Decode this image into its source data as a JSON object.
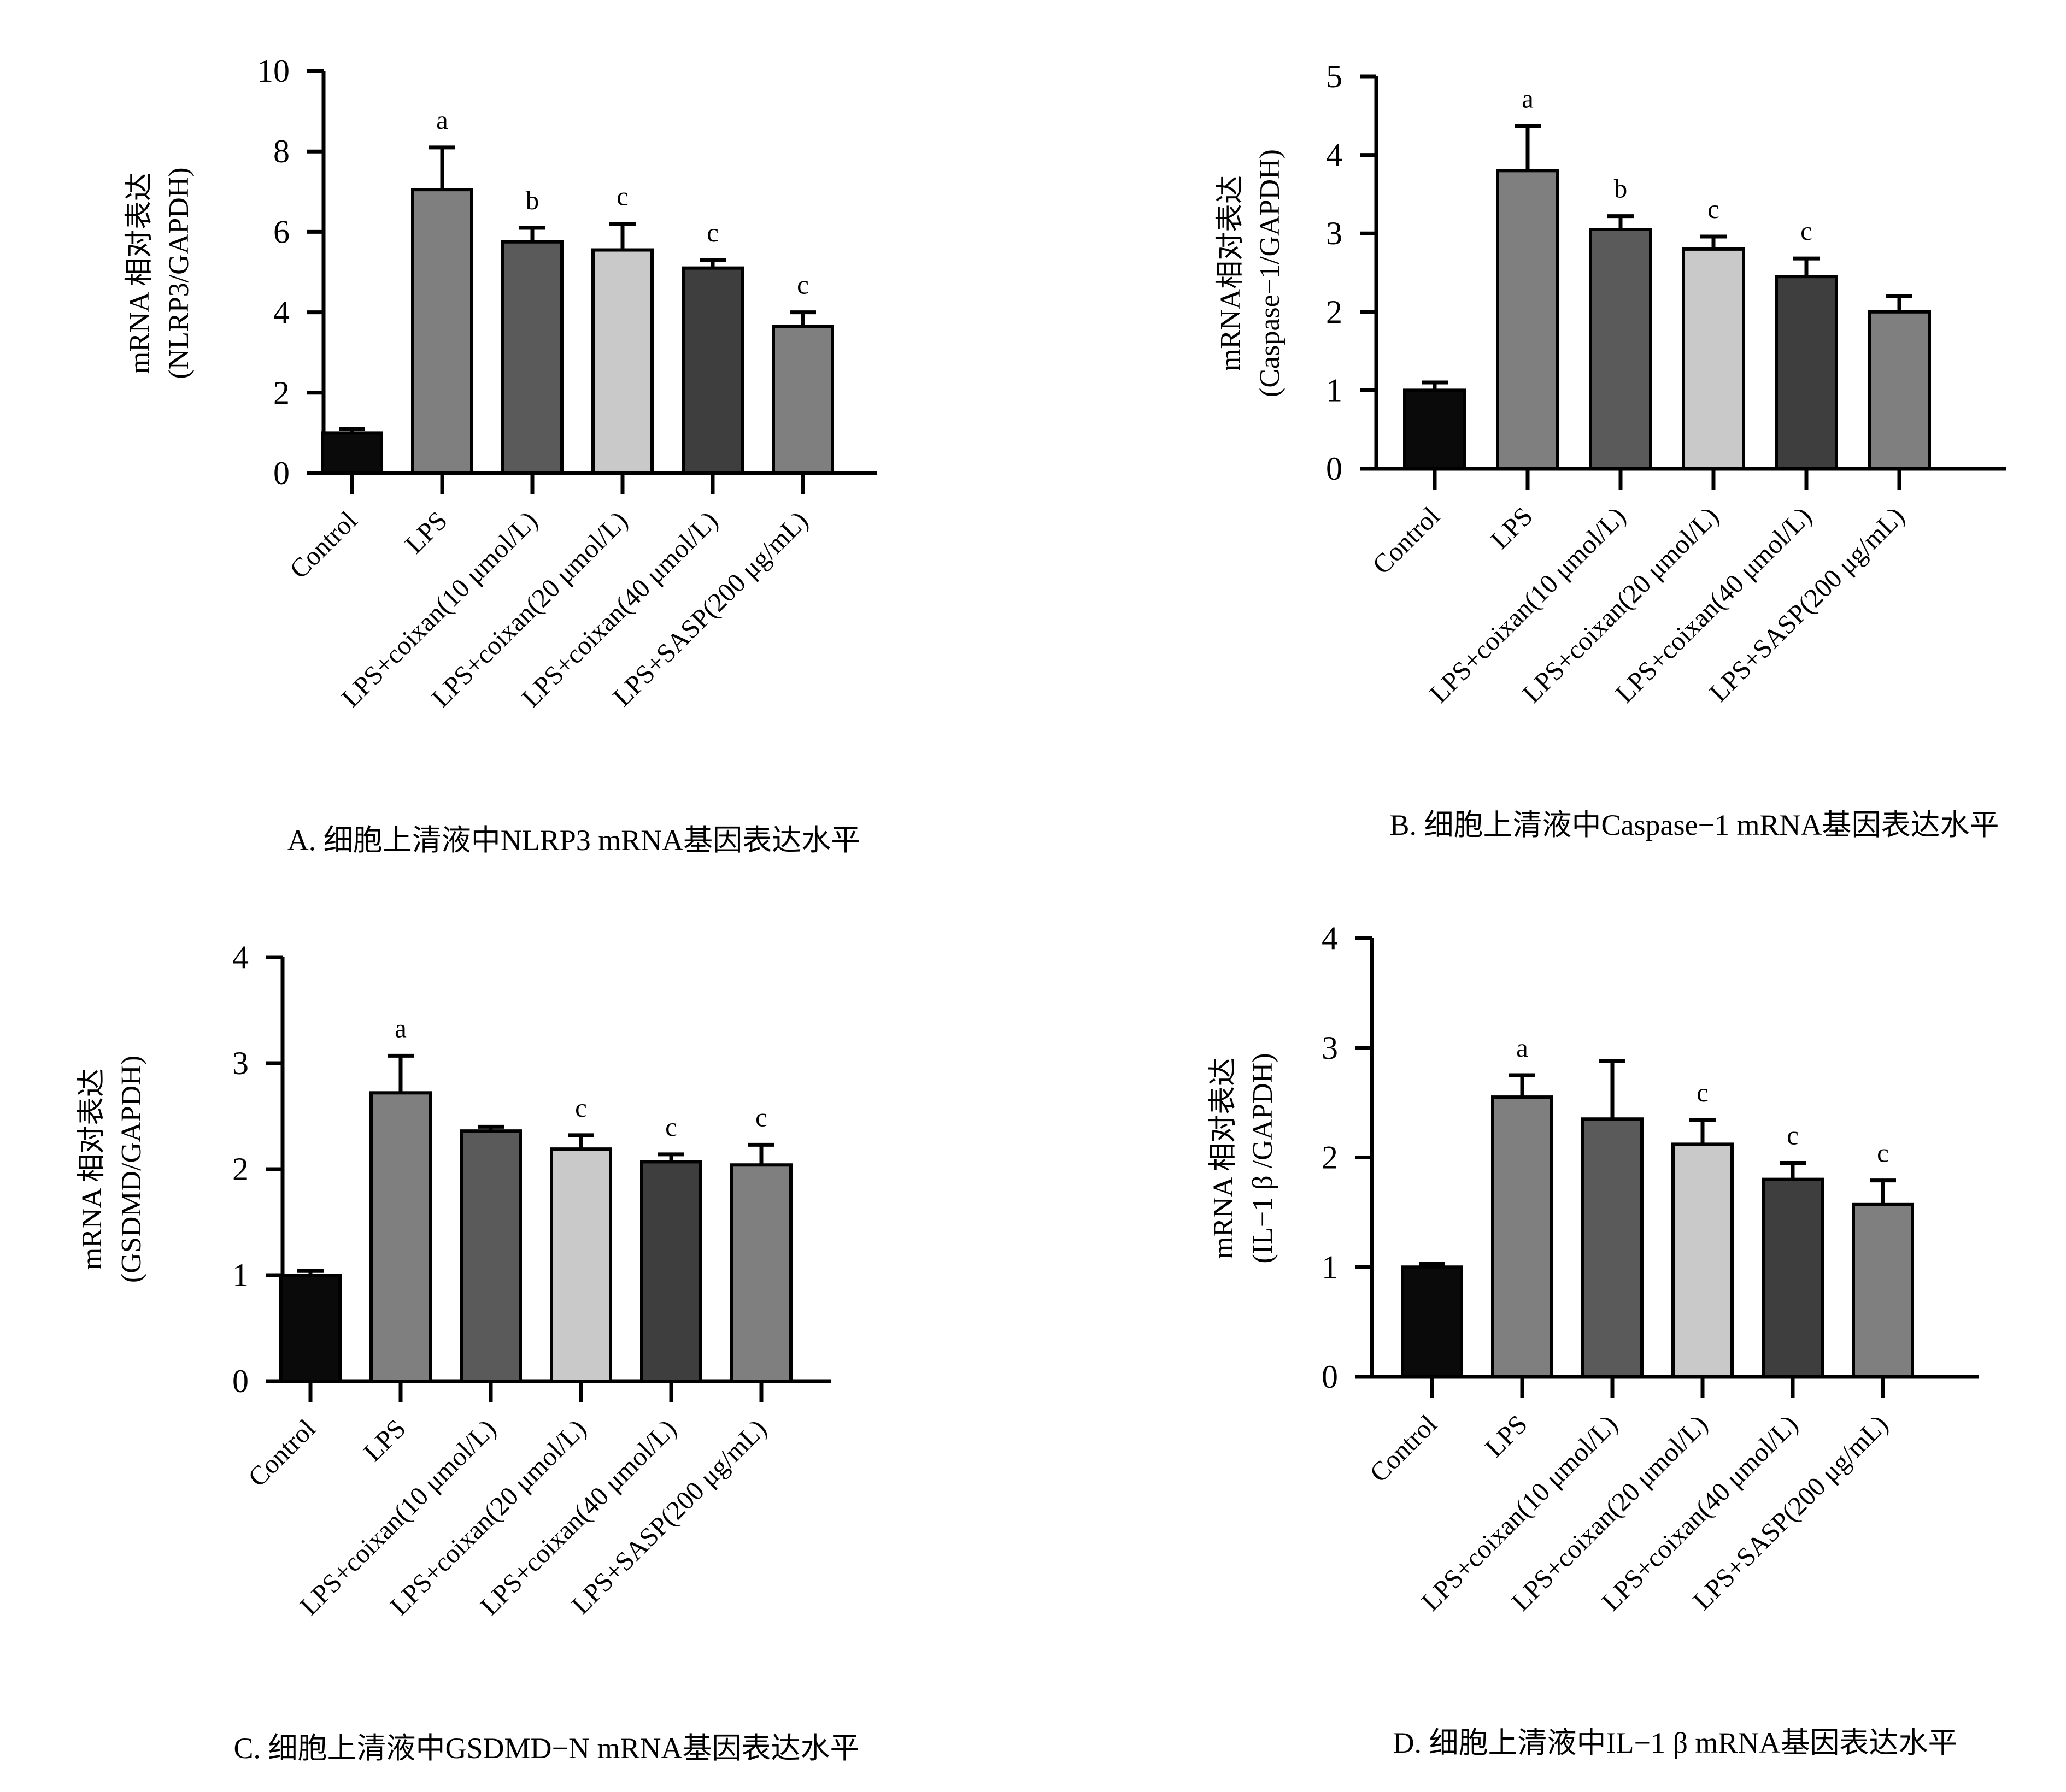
{
  "chart_data": [
    {
      "type": "bar",
      "panel": "A",
      "caption": "A. 细胞上清液中NLRP3 mRNA基因表达水平",
      "ylabel_lines": [
        "mRNA 相对表达",
        "(NLRP3/GAPDH)"
      ],
      "categories": [
        "Control",
        "LPS",
        "LPS+coixan(10 μmol/L)",
        "LPS+coixan(20 μmol/L)",
        "LPS+coixan(40 μmol/L)",
        "LPS+SASP(200 μg/mL)"
      ],
      "values": [
        1.0,
        7.05,
        5.75,
        5.55,
        5.1,
        3.65
      ],
      "errors": [
        0.1,
        1.05,
        0.35,
        0.65,
        0.2,
        0.35
      ],
      "significance": [
        "",
        "a",
        "b",
        "c",
        "c",
        "c"
      ],
      "colors": [
        "#0a0a0a",
        "#7f7f7f",
        "#5a5a5a",
        "#c9c9c9",
        "#3e3e3e",
        "#7f7f7f"
      ],
      "ylim": [
        0,
        10
      ],
      "yticks": [
        0,
        2,
        4,
        6,
        8,
        10
      ]
    },
    {
      "type": "bar",
      "panel": "B",
      "caption": "B. 细胞上清液中Caspase−1 mRNA基因表达水平",
      "ylabel_lines": [
        "mRNA相对表达",
        "(Caspase−1/GAPDH)"
      ],
      "categories": [
        "Control",
        "LPS",
        "LPS+coixan(10 μmol/L)",
        "LPS+coixan(20 μmol/L)",
        "LPS+coixan(40 μmol/L)",
        "LPS+SASP(200 μg/mL)"
      ],
      "values": [
        1.0,
        3.8,
        3.05,
        2.8,
        2.45,
        2.0
      ],
      "errors": [
        0.1,
        0.57,
        0.17,
        0.16,
        0.23,
        0.2
      ],
      "significance": [
        "",
        "a",
        "b",
        "c",
        "c",
        ""
      ],
      "colors": [
        "#0a0a0a",
        "#7f7f7f",
        "#5a5a5a",
        "#c9c9c9",
        "#3e3e3e",
        "#7f7f7f"
      ],
      "ylim": [
        0,
        5
      ],
      "yticks": [
        0,
        1,
        2,
        3,
        4,
        5
      ]
    },
    {
      "type": "bar",
      "panel": "C",
      "caption": "C. 细胞上清液中GSDMD−N mRNA基因表达水平",
      "ylabel_lines": [
        "mRNA 相对表达",
        "(GSDMD/GAPDH)"
      ],
      "categories": [
        "Control",
        "LPS",
        "LPS+coixan(10 μmol/L)",
        "LPS+coixan(20 μmol/L)",
        "LPS+coixan(40 μmol/L)",
        "LPS+SASP(200 μg/mL)"
      ],
      "values": [
        1.0,
        2.72,
        2.36,
        2.19,
        2.07,
        2.04
      ],
      "errors": [
        0.04,
        0.35,
        0.04,
        0.13,
        0.07,
        0.19
      ],
      "significance": [
        "",
        "a",
        "",
        "c",
        "c",
        "c"
      ],
      "colors": [
        "#0a0a0a",
        "#7f7f7f",
        "#5a5a5a",
        "#c9c9c9",
        "#3e3e3e",
        "#7f7f7f"
      ],
      "ylim": [
        0,
        4
      ],
      "yticks": [
        0,
        1,
        2,
        3,
        4
      ]
    },
    {
      "type": "bar",
      "panel": "D",
      "caption": "D. 细胞上清液中IL−1 β mRNA基因表达水平",
      "ylabel_lines": [
        "mRNA 相对表达",
        "(IL−1 β /GAPDH)"
      ],
      "categories": [
        "Control",
        "LPS",
        "LPS+coixan(10 μmol/L)",
        "LPS+coixan(20 μmol/L)",
        "LPS+coixan(40 μmol/L)",
        "LPS+SASP(200 μg/mL)"
      ],
      "values": [
        1.0,
        2.55,
        2.35,
        2.12,
        1.8,
        1.57
      ],
      "errors": [
        0.03,
        0.2,
        0.53,
        0.22,
        0.15,
        0.22
      ],
      "significance": [
        "",
        "a",
        "",
        "c",
        "c",
        "c"
      ],
      "colors": [
        "#0a0a0a",
        "#7f7f7f",
        "#5a5a5a",
        "#c9c9c9",
        "#3e3e3e",
        "#7f7f7f"
      ],
      "ylim": [
        0,
        4
      ],
      "yticks": [
        0,
        1,
        2,
        3,
        4
      ]
    }
  ]
}
